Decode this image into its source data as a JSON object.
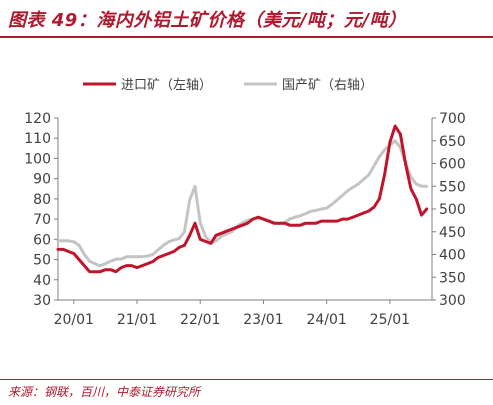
{
  "header": {
    "title": "图表 49：海内外铝土矿价格（美元/吨；元/吨）"
  },
  "footer": {
    "source": "来源：钢联，百川，中泰证券研究所"
  },
  "colors": {
    "accent": "#b0192e",
    "import": "#c0142c",
    "domestic": "#c4c4c4",
    "axis": "#7f7f7f",
    "text": "#404040"
  },
  "chart_data": {
    "type": "line",
    "title": "图表 49：海内外铝土矿价格（美元/吨；元/吨）",
    "x_ticks": [
      "20/01",
      "21/01",
      "22/01",
      "23/01",
      "24/01",
      "25/01"
    ],
    "x_range": [
      "2019-10",
      "2025-09"
    ],
    "y_left": {
      "min": 30,
      "max": 120,
      "ticks": [
        30,
        40,
        50,
        60,
        70,
        80,
        90,
        100,
        110,
        120
      ],
      "unit": "美元/吨"
    },
    "y_right": {
      "min": 300,
      "max": 700,
      "ticks": [
        300,
        350,
        400,
        450,
        500,
        550,
        600,
        650,
        700
      ],
      "unit": "元/吨"
    },
    "legend_position": "top-center",
    "series": [
      {
        "name": "进口矿（左轴）",
        "axis": "left",
        "color": "#c0142c",
        "points": [
          [
            "2019-10",
            55
          ],
          [
            "2019-11",
            55
          ],
          [
            "2019-12",
            54
          ],
          [
            "2020-01",
            53
          ],
          [
            "2020-02",
            50
          ],
          [
            "2020-03",
            47
          ],
          [
            "2020-04",
            44
          ],
          [
            "2020-05",
            44
          ],
          [
            "2020-06",
            44
          ],
          [
            "2020-07",
            45
          ],
          [
            "2020-08",
            45
          ],
          [
            "2020-09",
            44
          ],
          [
            "2020-10",
            46
          ],
          [
            "2020-11",
            47
          ],
          [
            "2020-12",
            47
          ],
          [
            "2021-01",
            46
          ],
          [
            "2021-02",
            47
          ],
          [
            "2021-03",
            48
          ],
          [
            "2021-04",
            49
          ],
          [
            "2021-05",
            51
          ],
          [
            "2021-06",
            52
          ],
          [
            "2021-07",
            53
          ],
          [
            "2021-08",
            54
          ],
          [
            "2021-09",
            56
          ],
          [
            "2021-10",
            57
          ],
          [
            "2021-11",
            62
          ],
          [
            "2021-12",
            68
          ],
          [
            "2022-01",
            60
          ],
          [
            "2022-02",
            59
          ],
          [
            "2022-03",
            58
          ],
          [
            "2022-04",
            62
          ],
          [
            "2022-05",
            63
          ],
          [
            "2022-06",
            64
          ],
          [
            "2022-07",
            65
          ],
          [
            "2022-08",
            66
          ],
          [
            "2022-09",
            67
          ],
          [
            "2022-10",
            68
          ],
          [
            "2022-11",
            70
          ],
          [
            "2022-12",
            71
          ],
          [
            "2023-01",
            70
          ],
          [
            "2023-02",
            69
          ],
          [
            "2023-03",
            68
          ],
          [
            "2023-04",
            68
          ],
          [
            "2023-05",
            68
          ],
          [
            "2023-06",
            67
          ],
          [
            "2023-07",
            67
          ],
          [
            "2023-08",
            67
          ],
          [
            "2023-09",
            68
          ],
          [
            "2023-10",
            68
          ],
          [
            "2023-11",
            68
          ],
          [
            "2023-12",
            69
          ],
          [
            "2024-01",
            69
          ],
          [
            "2024-02",
            69
          ],
          [
            "2024-03",
            69
          ],
          [
            "2024-04",
            70
          ],
          [
            "2024-05",
            70
          ],
          [
            "2024-06",
            71
          ],
          [
            "2024-07",
            72
          ],
          [
            "2024-08",
            73
          ],
          [
            "2024-09",
            74
          ],
          [
            "2024-10",
            76
          ],
          [
            "2024-11",
            80
          ],
          [
            "2024-12",
            92
          ],
          [
            "2025-01",
            108
          ],
          [
            "2025-02",
            116
          ],
          [
            "2025-03",
            112
          ],
          [
            "2025-04",
            97
          ],
          [
            "2025-05",
            85
          ],
          [
            "2025-06",
            80
          ],
          [
            "2025-07",
            72
          ],
          [
            "2025-08",
            75
          ]
        ]
      },
      {
        "name": "国产矿（右轴）",
        "axis": "right",
        "color": "#c4c4c4",
        "points": [
          [
            "2019-10",
            430
          ],
          [
            "2019-11",
            430
          ],
          [
            "2019-12",
            430
          ],
          [
            "2020-01",
            428
          ],
          [
            "2020-02",
            420
          ],
          [
            "2020-03",
            400
          ],
          [
            "2020-04",
            385
          ],
          [
            "2020-05",
            380
          ],
          [
            "2020-06",
            375
          ],
          [
            "2020-07",
            380
          ],
          [
            "2020-08",
            385
          ],
          [
            "2020-09",
            390
          ],
          [
            "2020-10",
            390
          ],
          [
            "2020-11",
            395
          ],
          [
            "2020-12",
            395
          ],
          [
            "2021-01",
            395
          ],
          [
            "2021-02",
            395
          ],
          [
            "2021-03",
            397
          ],
          [
            "2021-04",
            400
          ],
          [
            "2021-05",
            410
          ],
          [
            "2021-06",
            420
          ],
          [
            "2021-07",
            428
          ],
          [
            "2021-08",
            432
          ],
          [
            "2021-09",
            435
          ],
          [
            "2021-10",
            450
          ],
          [
            "2021-11",
            520
          ],
          [
            "2021-12",
            550
          ],
          [
            "2022-01",
            470
          ],
          [
            "2022-02",
            440
          ],
          [
            "2022-03",
            425
          ],
          [
            "2022-04",
            430
          ],
          [
            "2022-05",
            440
          ],
          [
            "2022-06",
            445
          ],
          [
            "2022-07",
            450
          ],
          [
            "2022-08",
            462
          ],
          [
            "2022-09",
            470
          ],
          [
            "2022-10",
            475
          ],
          [
            "2022-11",
            478
          ],
          [
            "2022-12",
            480
          ],
          [
            "2023-01",
            478
          ],
          [
            "2023-02",
            475
          ],
          [
            "2023-03",
            470
          ],
          [
            "2023-04",
            468
          ],
          [
            "2023-05",
            470
          ],
          [
            "2023-06",
            478
          ],
          [
            "2023-07",
            482
          ],
          [
            "2023-08",
            485
          ],
          [
            "2023-09",
            490
          ],
          [
            "2023-10",
            495
          ],
          [
            "2023-11",
            497
          ],
          [
            "2023-12",
            500
          ],
          [
            "2024-01",
            502
          ],
          [
            "2024-02",
            510
          ],
          [
            "2024-03",
            520
          ],
          [
            "2024-04",
            530
          ],
          [
            "2024-05",
            540
          ],
          [
            "2024-06",
            548
          ],
          [
            "2024-07",
            555
          ],
          [
            "2024-08",
            565
          ],
          [
            "2024-09",
            575
          ],
          [
            "2024-10",
            595
          ],
          [
            "2024-11",
            615
          ],
          [
            "2024-12",
            630
          ],
          [
            "2025-01",
            640
          ],
          [
            "2025-02",
            650
          ],
          [
            "2025-03",
            635
          ],
          [
            "2025-04",
            600
          ],
          [
            "2025-05",
            570
          ],
          [
            "2025-06",
            555
          ],
          [
            "2025-07",
            550
          ],
          [
            "2025-08",
            550
          ]
        ]
      }
    ]
  }
}
